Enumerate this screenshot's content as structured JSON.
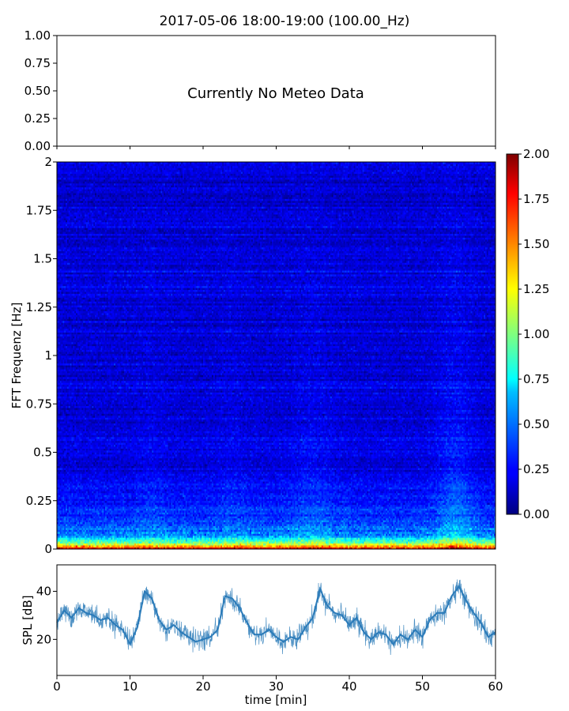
{
  "title": "2017-05-06 18:00-19:00 (100.00_Hz)",
  "colors": {
    "spl_line": "#2b7bb9",
    "axes": "#000000",
    "background": "#ffffff",
    "colormap": "jet"
  },
  "chart_data": [
    {
      "type": "line",
      "panel": "meteo",
      "title": "",
      "xlabel": "",
      "ylabel": "",
      "annotation": "Currently No Meteo Data",
      "xlim": [
        0,
        60
      ],
      "ylim": [
        0,
        1
      ],
      "y_ticks": [
        "0.00",
        "0.25",
        "0.50",
        "0.75",
        "1.00"
      ],
      "series": []
    },
    {
      "type": "heatmap",
      "panel": "spectrogram",
      "xlabel": "",
      "ylabel": "FFT Frequenz [Hz]",
      "xlim": [
        0,
        60
      ],
      "ylim": [
        0,
        2
      ],
      "y_ticks": [
        "0",
        "0.25",
        "0.5",
        "0.75",
        "1",
        "1.25",
        "1.5",
        "1.75",
        "2"
      ],
      "colorbar": {
        "range": [
          0,
          2
        ],
        "ticks": [
          "0.00",
          "0.25",
          "0.50",
          "0.75",
          "1.00",
          "1.25",
          "1.50",
          "1.75",
          "2.00"
        ]
      },
      "structure": {
        "time_bins": 300,
        "freq_bins": 200,
        "description_values": "values highest (~2.0) below 0.05 Hz, ~1.0 around 0.1 Hz, decreasing to ~0.2 above 1 Hz; elevated energy near 35 min and 52-57 min"
      }
    },
    {
      "type": "line",
      "panel": "spl",
      "xlabel": "time [min]",
      "ylabel": "SPL [dB]",
      "xlim": [
        0,
        60
      ],
      "ylim": [
        5,
        51
      ],
      "x_ticks": [
        "0",
        "10",
        "20",
        "30",
        "40",
        "50",
        "60"
      ],
      "y_ticks": [
        "20",
        "40"
      ],
      "series": [
        {
          "x": [
            0,
            1,
            2,
            3,
            4,
            5,
            6,
            7,
            8,
            9,
            10,
            11,
            12,
            13,
            14,
            15,
            16,
            17,
            18,
            19,
            20,
            21,
            22,
            23,
            24,
            25,
            26,
            27,
            28,
            29,
            30,
            31,
            32,
            33,
            34,
            35,
            36,
            37,
            38,
            39,
            40,
            41,
            42,
            43,
            44,
            45,
            46,
            47,
            48,
            49,
            50,
            51,
            52,
            53,
            54,
            55,
            56,
            57,
            58,
            59,
            60
          ],
          "y": [
            27,
            32,
            29,
            33,
            31,
            30,
            28,
            29,
            26,
            24,
            18,
            25,
            40,
            37,
            28,
            24,
            26,
            23,
            21,
            19,
            20,
            21,
            24,
            38,
            37,
            33,
            27,
            22,
            22,
            24,
            21,
            19,
            21,
            20,
            25,
            29,
            41,
            34,
            31,
            30,
            26,
            29,
            23,
            20,
            23,
            22,
            18,
            22,
            20,
            24,
            21,
            28,
            31,
            31,
            38,
            42,
            36,
            31,
            27,
            21,
            23
          ]
        }
      ]
    }
  ]
}
